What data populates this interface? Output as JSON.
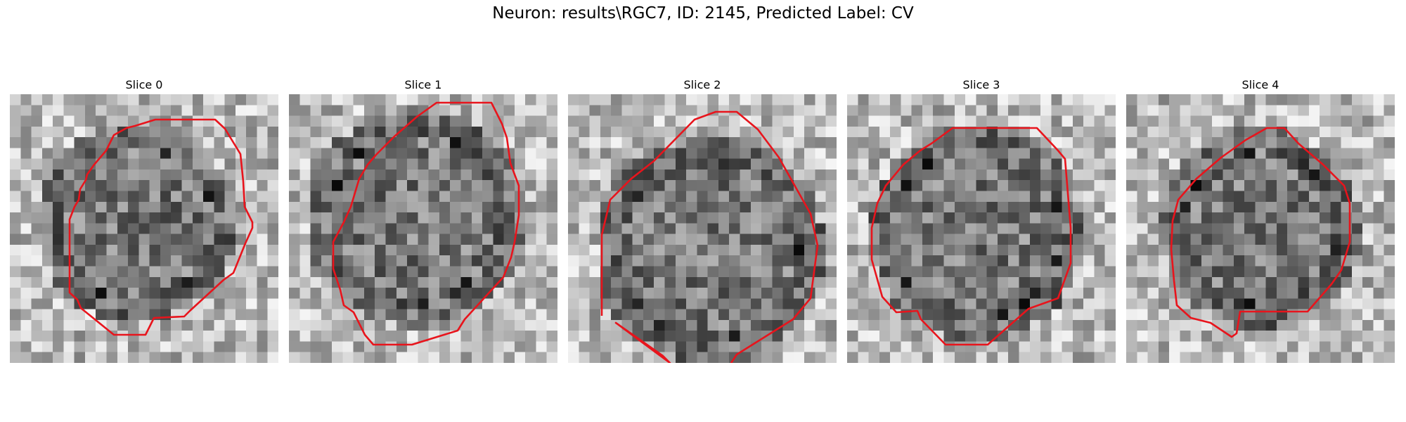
{
  "figure": {
    "title": "Neuron: results\\RGC7, ID: 2145, Predicted Label: CV"
  },
  "panels": [
    {
      "title": "Slice 0"
    },
    {
      "title": "Slice 1"
    },
    {
      "title": "Slice 2"
    },
    {
      "title": "Slice 3"
    },
    {
      "title": "Slice 4"
    }
  ],
  "colors": {
    "contour": "#e8141c",
    "colormap": "grayscale"
  }
}
